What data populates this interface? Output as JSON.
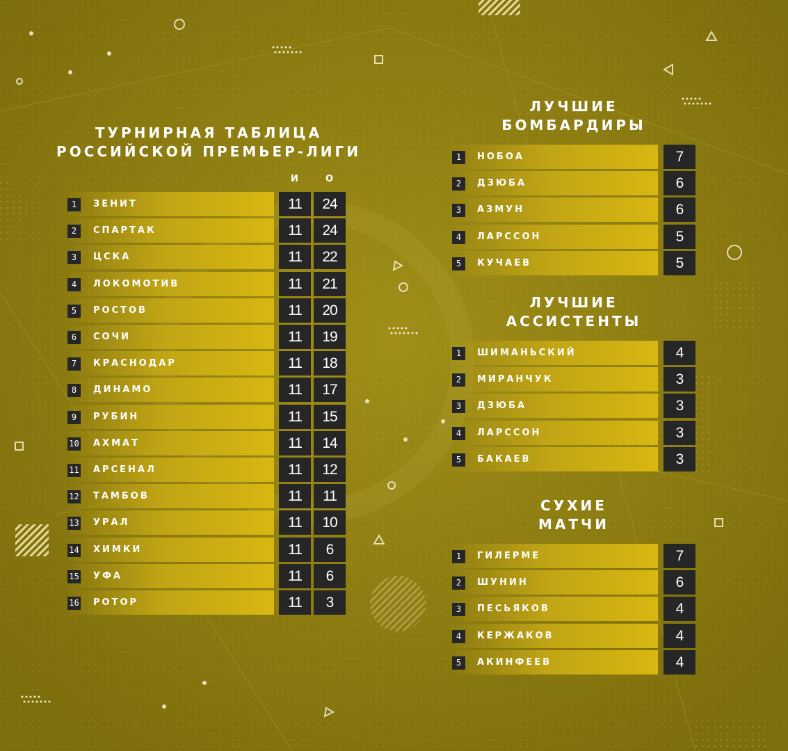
{
  "standings": {
    "title_line1": "ТУРНИРНАЯ ТАБЛИЦА",
    "title_line2": "РОССИЙСКОЙ ПРЕМЬЕР-ЛИГИ",
    "col_games": "И",
    "col_points": "О",
    "rows": [
      {
        "rank": "1",
        "team": "ЗЕНИТ",
        "games": "11",
        "points": "24"
      },
      {
        "rank": "2",
        "team": "СПАРТАК",
        "games": "11",
        "points": "24"
      },
      {
        "rank": "3",
        "team": "ЦСКА",
        "games": "11",
        "points": "22"
      },
      {
        "rank": "4",
        "team": "ЛОКОМОТИВ",
        "games": "11",
        "points": "21"
      },
      {
        "rank": "5",
        "team": "РОСТОВ",
        "games": "11",
        "points": "20"
      },
      {
        "rank": "6",
        "team": "СОЧИ",
        "games": "11",
        "points": "19"
      },
      {
        "rank": "7",
        "team": "КРАСНОДАР",
        "games": "11",
        "points": "18"
      },
      {
        "rank": "8",
        "team": "ДИНАМО",
        "games": "11",
        "points": "17"
      },
      {
        "rank": "9",
        "team": "РУБИН",
        "games": "11",
        "points": "15"
      },
      {
        "rank": "10",
        "team": "АХМАТ",
        "games": "11",
        "points": "14"
      },
      {
        "rank": "11",
        "team": "АРСЕНАЛ",
        "games": "11",
        "points": "12"
      },
      {
        "rank": "12",
        "team": "ТАМБОВ",
        "games": "11",
        "points": "11"
      },
      {
        "rank": "13",
        "team": "УРАЛ",
        "games": "11",
        "points": "10"
      },
      {
        "rank": "14",
        "team": "ХИМКИ",
        "games": "11",
        "points": "6"
      },
      {
        "rank": "15",
        "team": "УФА",
        "games": "11",
        "points": "6"
      },
      {
        "rank": "16",
        "team": "РОТОР",
        "games": "11",
        "points": "3"
      }
    ]
  },
  "scorers": {
    "title_line1": "ЛУЧШИЕ",
    "title_line2": "БОМБАРДИРЫ",
    "rows": [
      {
        "rank": "1",
        "name": "НОБОА",
        "value": "7"
      },
      {
        "rank": "2",
        "name": "ДЗЮБА",
        "value": "6"
      },
      {
        "rank": "3",
        "name": "АЗМУН",
        "value": "6"
      },
      {
        "rank": "4",
        "name": "ЛАРССОН",
        "value": "5"
      },
      {
        "rank": "5",
        "name": "КУЧАЕВ",
        "value": "5"
      }
    ]
  },
  "assists": {
    "title_line1": "ЛУЧШИЕ",
    "title_line2": "АССИСТЕНТЫ",
    "rows": [
      {
        "rank": "1",
        "name": "ШИМАНЬСКИЙ",
        "value": "4"
      },
      {
        "rank": "2",
        "name": "МИРАНЧУК",
        "value": "3"
      },
      {
        "rank": "3",
        "name": "ДЗЮБА",
        "value": "3"
      },
      {
        "rank": "4",
        "name": "ЛАРССОН",
        "value": "3"
      },
      {
        "rank": "5",
        "name": "БАКАЕВ",
        "value": "3"
      }
    ]
  },
  "clean_sheets": {
    "title_line1": "СУХИЕ",
    "title_line2": "МАТЧИ",
    "rows": [
      {
        "rank": "1",
        "name": "ГИЛЕРМЕ",
        "value": "7"
      },
      {
        "rank": "2",
        "name": "ШУНИН",
        "value": "6"
      },
      {
        "rank": "3",
        "name": "ПЕСЬЯКОВ",
        "value": "4"
      },
      {
        "rank": "4",
        "name": "КЕРЖАКОВ",
        "value": "4"
      },
      {
        "rank": "5",
        "name": "АКИНФЕЕВ",
        "value": "4"
      }
    ]
  },
  "colors": {
    "background": "#8f7f10",
    "bar_accent": "#d8b711",
    "box": "#262626",
    "text": "#ffffff"
  }
}
